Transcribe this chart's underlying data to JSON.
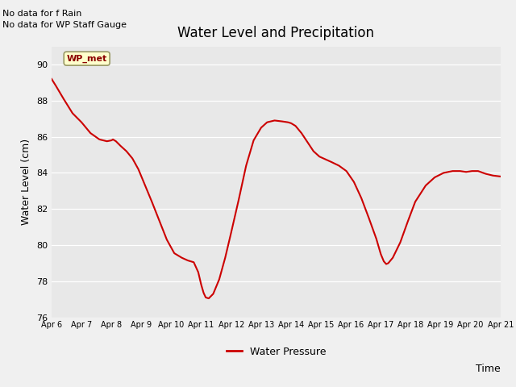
{
  "title": "Water Level and Precipitation",
  "xlabel": "Time",
  "ylabel": "Water Level (cm)",
  "ylim": [
    76,
    91
  ],
  "yticks": [
    76,
    78,
    80,
    82,
    84,
    86,
    88,
    90
  ],
  "line_color": "#cc0000",
  "line_width": 1.5,
  "background_color": "#f0f0f0",
  "plot_bg_color": "#e8e8e8",
  "annotations_top_left": [
    "No data for f Rain",
    "No data for WP Staff Gauge"
  ],
  "legend_box_label": "WP_met",
  "legend_box_bg": "#ffffcc",
  "legend_box_border": "#999966",
  "legend_label": "Water Pressure",
  "x_labels": [
    "Apr 6",
    "Apr 7",
    "Apr 8",
    "Apr 9",
    "Apr 10",
    "Apr 11",
    "Apr 12",
    "Apr 13",
    "Apr 14",
    "Apr 15",
    "Apr 16",
    "Apr 17",
    "Apr 18",
    "Apr 19",
    "Apr 20",
    "Apr 21"
  ],
  "x_values": [
    6,
    7,
    8,
    9,
    10,
    11,
    12,
    13,
    14,
    15,
    16,
    17,
    18,
    19,
    20,
    21
  ],
  "y_data_x": [
    6.0,
    6.15,
    6.4,
    6.7,
    7.0,
    7.3,
    7.6,
    7.85,
    8.0,
    8.05,
    8.15,
    8.3,
    8.5,
    8.7,
    8.9,
    9.1,
    9.35,
    9.6,
    9.85,
    10.1,
    10.35,
    10.55,
    10.75,
    10.9,
    11.0,
    11.08,
    11.15,
    11.25,
    11.4,
    11.6,
    11.8,
    12.0,
    12.25,
    12.5,
    12.75,
    13.0,
    13.2,
    13.45,
    13.7,
    13.9,
    14.0,
    14.15,
    14.35,
    14.55,
    14.75,
    14.95,
    15.15,
    15.35,
    15.6,
    15.85,
    16.1,
    16.35,
    16.6,
    16.85,
    17.0,
    17.1,
    17.18,
    17.25,
    17.4,
    17.65,
    17.9,
    18.15,
    18.5,
    18.8,
    19.1,
    19.4,
    19.65,
    19.85,
    20.05,
    20.25,
    20.5,
    20.75,
    21.0
  ],
  "y_data_y": [
    89.2,
    88.8,
    88.1,
    87.3,
    86.8,
    86.2,
    85.85,
    85.75,
    85.8,
    85.85,
    85.75,
    85.5,
    85.2,
    84.8,
    84.2,
    83.4,
    82.4,
    81.35,
    80.3,
    79.55,
    79.3,
    79.15,
    79.05,
    78.5,
    77.8,
    77.35,
    77.1,
    77.05,
    77.3,
    78.1,
    79.3,
    80.7,
    82.5,
    84.4,
    85.8,
    86.5,
    86.8,
    86.9,
    86.85,
    86.8,
    86.75,
    86.6,
    86.2,
    85.7,
    85.2,
    84.9,
    84.75,
    84.6,
    84.4,
    84.1,
    83.5,
    82.6,
    81.5,
    80.35,
    79.5,
    79.1,
    78.95,
    79.0,
    79.3,
    80.15,
    81.3,
    82.4,
    83.3,
    83.75,
    84.0,
    84.1,
    84.1,
    84.05,
    84.1,
    84.1,
    83.95,
    83.85,
    83.8
  ]
}
